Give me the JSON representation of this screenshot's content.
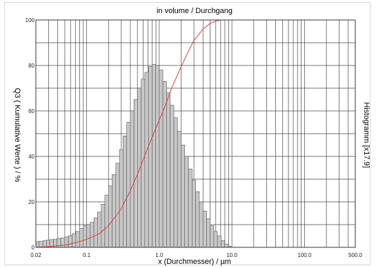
{
  "chart_data": {
    "type": "bar",
    "title": "in volume / Durchgang",
    "xlabel": "x (Durchmesser) / µm",
    "ylabel": "Q3 ( Kumulative Werte ) / %",
    "y2label": "Histogramm [x17.9]",
    "x_scale": "log",
    "xlim": [
      0.02,
      500.0
    ],
    "ylim": [
      0,
      100
    ],
    "x_tick_labels": [
      {
        "value": 0.02,
        "label": "0.02"
      },
      {
        "value": 0.1,
        "label": "0.1"
      },
      {
        "value": 1.0,
        "label": "1.0"
      },
      {
        "value": 10.0,
        "label": "10.0"
      },
      {
        "value": 100.0,
        "label": "100.0"
      },
      {
        "value": 500.0,
        "label": "500.0"
      }
    ],
    "y_tick_labels": [
      {
        "value": 0,
        "label": "0"
      },
      {
        "value": 20,
        "label": "20"
      },
      {
        "value": 40,
        "label": "40"
      },
      {
        "value": 60,
        "label": "60"
      },
      {
        "value": 80,
        "label": "80"
      },
      {
        "value": 100,
        "label": "100"
      }
    ],
    "grid": true,
    "series": [
      {
        "type": "histogram",
        "color": "#c8c8c8",
        "edge_color": "#555555",
        "x": [
          0.02,
          0.022,
          0.025,
          0.028,
          0.031,
          0.035,
          0.039,
          0.044,
          0.05,
          0.056,
          0.063,
          0.071,
          0.08,
          0.09,
          0.1,
          0.112,
          0.126,
          0.141,
          0.159,
          0.178,
          0.2,
          0.224,
          0.252,
          0.283,
          0.317,
          0.356,
          0.399,
          0.448,
          0.502,
          0.564,
          0.632,
          0.71,
          0.796,
          0.893,
          1.0,
          1.12,
          1.26,
          1.41,
          1.59,
          1.78,
          2.0,
          2.24,
          2.52,
          2.83,
          3.17,
          3.56,
          4.0,
          4.48,
          5.02,
          5.64,
          6.32,
          7.1,
          7.96,
          8.93,
          10.0
        ],
        "values": [
          2.5,
          2.7,
          3.0,
          3.2,
          3.4,
          3.6,
          3.9,
          4.2,
          4.6,
          5.1,
          6.0,
          7.0,
          8.3,
          9.5,
          10.0,
          11.0,
          13.0,
          15.5,
          19.0,
          23.0,
          27.0,
          32.0,
          37.0,
          43.0,
          49.0,
          55.0,
          60.0,
          65.0,
          70.0,
          74.0,
          77.0,
          79.5,
          80.5,
          80.0,
          78.0,
          73.0,
          68.0,
          62.5,
          57.0,
          51.0,
          45.0,
          40.0,
          34.5,
          29.5,
          24.5,
          20.0,
          16.0,
          12.5,
          9.5,
          7.0,
          5.0,
          3.0,
          1.5,
          0.5,
          0.0
        ]
      },
      {
        "type": "line",
        "color": "#e03c3c",
        "x": [
          0.02,
          0.03,
          0.05,
          0.07,
          0.1,
          0.15,
          0.2,
          0.3,
          0.4,
          0.5,
          0.6,
          0.7,
          0.8,
          0.9,
          1.0,
          1.2,
          1.5,
          2.0,
          2.5,
          3.0,
          4.0,
          5.0,
          6.0,
          7.0,
          8.0,
          9.0,
          10.0,
          20.0,
          100.0,
          500.0
        ],
        "values": [
          0.0,
          0.3,
          1.0,
          2.0,
          3.5,
          6.0,
          9.5,
          17.0,
          25.0,
          32.0,
          38.5,
          44.0,
          48.5,
          52.5,
          56.0,
          62.0,
          70.5,
          79.5,
          86.0,
          91.0,
          96.0,
          98.5,
          99.5,
          100.0,
          100.0,
          100.0,
          100.0,
          100.0,
          100.0,
          100.0
        ]
      }
    ]
  }
}
